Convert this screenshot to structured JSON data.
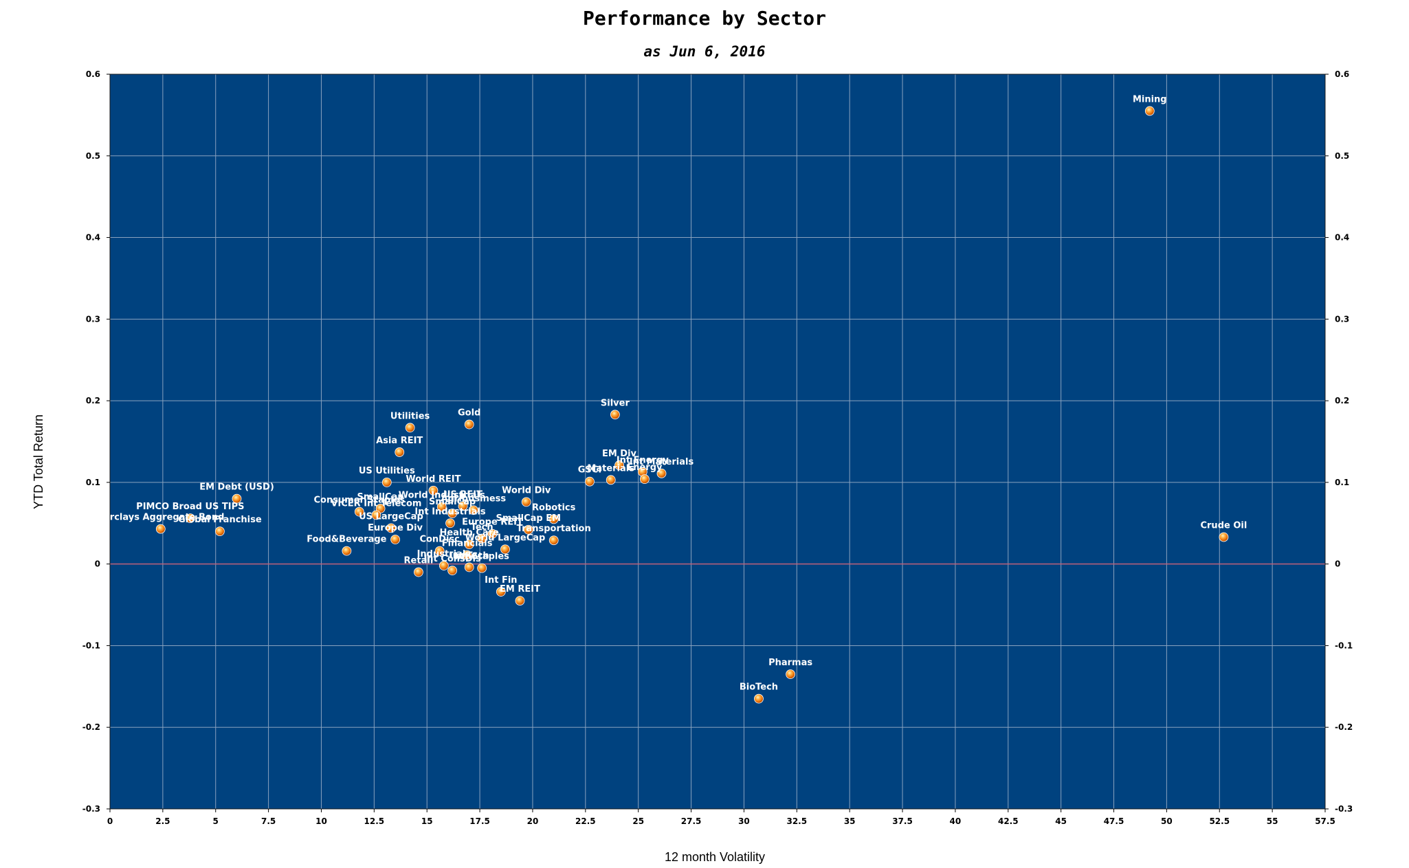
{
  "chart_data": {
    "type": "scatter",
    "title": "Performance by Sector",
    "subtitle": "as Jun 6, 2016",
    "xlabel": "12 month Volatility",
    "ylabel": "YTD Total Return",
    "xlim": [
      0,
      57.5
    ],
    "ylim": [
      -0.3,
      0.6
    ],
    "x_ticks": [
      "0",
      "2.5",
      "5",
      "7.5",
      "10",
      "12.5",
      "15",
      "17.5",
      "20",
      "22.5",
      "25",
      "27.5",
      "30",
      "32.5",
      "35",
      "37.5",
      "40",
      "42.5",
      "45",
      "47.5",
      "50",
      "52.5",
      "55",
      "57.5"
    ],
    "y_ticks": [
      "0.6",
      "0.5",
      "0.4",
      "0.3",
      "0.2",
      "0.1",
      "0",
      "-0.1",
      "-0.2",
      "-0.3"
    ],
    "grid": true,
    "plot_background": "#00427f",
    "grid_color": "#8aa2bf",
    "zero_line_color": "#c0607a",
    "marker_color": "#f08a1c",
    "label_color": "#ffffff",
    "points": [
      {
        "label": "Mining",
        "x": 49.2,
        "y": 0.555
      },
      {
        "label": "Crude Oil",
        "x": 52.7,
        "y": 0.033
      },
      {
        "label": "Pharmas",
        "x": 32.2,
        "y": -0.135
      },
      {
        "label": "BioTech",
        "x": 30.7,
        "y": -0.165
      },
      {
        "label": "Silver",
        "x": 23.9,
        "y": 0.183
      },
      {
        "label": "EM Div",
        "x": 24.1,
        "y": 0.121
      },
      {
        "label": "Int Energy",
        "x": 25.2,
        "y": 0.113
      },
      {
        "label": "Int Materials",
        "x": 26.1,
        "y": 0.111
      },
      {
        "label": "Energy",
        "x": 25.3,
        "y": 0.104
      },
      {
        "label": "Materials",
        "x": 23.7,
        "y": 0.103
      },
      {
        "label": "GSCI",
        "x": 22.7,
        "y": 0.101
      },
      {
        "label": "Gold",
        "x": 17.0,
        "y": 0.171
      },
      {
        "label": "Utilities",
        "x": 14.2,
        "y": 0.167
      },
      {
        "label": "Asia REIT",
        "x": 13.7,
        "y": 0.137
      },
      {
        "label": "World REIT",
        "x": 15.3,
        "y": 0.09
      },
      {
        "label": "US Utilities",
        "x": 13.1,
        "y": 0.1
      },
      {
        "label": "EM Debt (USD)",
        "x": 6.0,
        "y": 0.08
      },
      {
        "label": "PIMCO Broad US TIPS",
        "x": 3.8,
        "y": 0.056
      },
      {
        "label": "Barclays Aggregate Bond",
        "x": 2.4,
        "y": 0.043
      },
      {
        "label": "Global Franchise",
        "x": 5.2,
        "y": 0.04
      },
      {
        "label": "US REIT",
        "x": 16.7,
        "y": 0.071
      },
      {
        "label": "World Div",
        "x": 19.7,
        "y": 0.076
      },
      {
        "label": "SmallCap",
        "x": 12.8,
        "y": 0.068
      },
      {
        "label": "Consumer Staples",
        "x": 11.8,
        "y": 0.064
      },
      {
        "label": "VICER Int Telecom",
        "x": 12.6,
        "y": 0.06
      },
      {
        "label": "World Industrials",
        "x": 15.7,
        "y": 0.07
      },
      {
        "label": "Agribusiness",
        "x": 17.2,
        "y": 0.066
      },
      {
        "label": "SmallCap",
        "x": 16.2,
        "y": 0.062
      },
      {
        "label": "Robotics",
        "x": 21.0,
        "y": 0.055
      },
      {
        "label": "Int Industrials",
        "x": 16.1,
        "y": 0.05
      },
      {
        "label": "US LargeCap",
        "x": 13.3,
        "y": 0.044
      },
      {
        "label": "SmallCap EM",
        "x": 19.8,
        "y": 0.042
      },
      {
        "label": "Europe REIT",
        "x": 18.1,
        "y": 0.037
      },
      {
        "label": "Europe Div",
        "x": 13.5,
        "y": 0.03
      },
      {
        "label": "Transportation",
        "x": 21.0,
        "y": 0.029
      },
      {
        "label": "Tech",
        "x": 17.6,
        "y": 0.031
      },
      {
        "label": "Health Care",
        "x": 17.0,
        "y": 0.024
      },
      {
        "label": "ConDisc",
        "x": 15.6,
        "y": 0.016
      },
      {
        "label": "World LargeCap",
        "x": 18.7,
        "y": 0.018
      },
      {
        "label": "Financials",
        "x": 16.9,
        "y": 0.011
      },
      {
        "label": "Food&Beverage",
        "x": 11.2,
        "y": 0.016
      },
      {
        "label": "Industrials",
        "x": 15.8,
        "y": -0.002
      },
      {
        "label": "Int Tech",
        "x": 17.0,
        "y": -0.004
      },
      {
        "label": "Int Staples",
        "x": 17.6,
        "y": -0.005
      },
      {
        "label": "Int ConsDis",
        "x": 16.2,
        "y": -0.008
      },
      {
        "label": "Retail",
        "x": 14.6,
        "y": -0.01
      },
      {
        "label": "Int Fin",
        "x": 18.5,
        "y": -0.034
      },
      {
        "label": "EM REIT",
        "x": 19.4,
        "y": -0.045
      }
    ]
  }
}
